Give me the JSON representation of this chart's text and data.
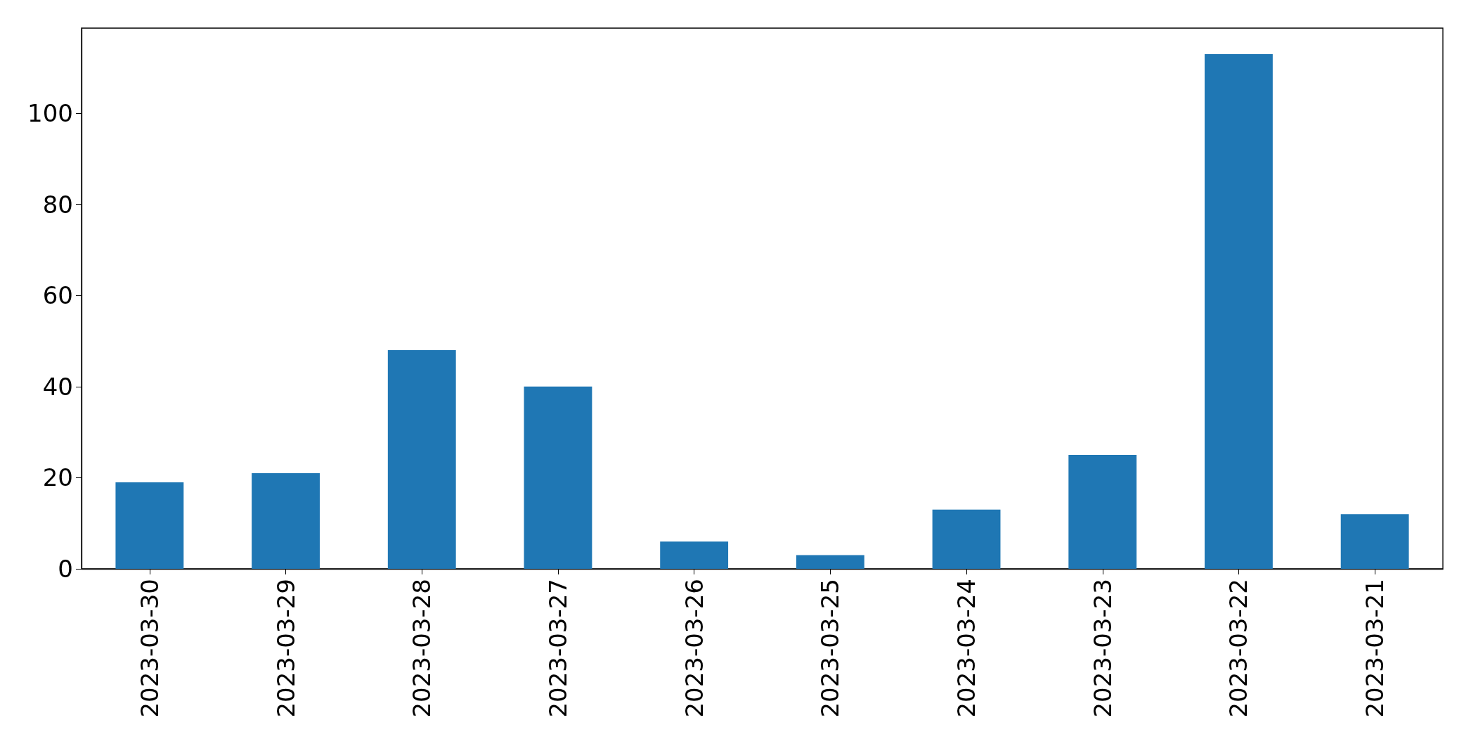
{
  "chart_data": {
    "type": "bar",
    "categories": [
      "2023-03-30",
      "2023-03-29",
      "2023-03-28",
      "2023-03-27",
      "2023-03-26",
      "2023-03-25",
      "2023-03-24",
      "2023-03-23",
      "2023-03-22",
      "2023-03-21"
    ],
    "values": [
      19,
      21,
      48,
      40,
      6,
      3,
      13,
      25,
      113,
      12
    ],
    "color": "#1f77b4",
    "ylim": [
      0,
      118.7
    ],
    "yticks": [
      0,
      20,
      40,
      60,
      80,
      100
    ],
    "grid": false
  }
}
